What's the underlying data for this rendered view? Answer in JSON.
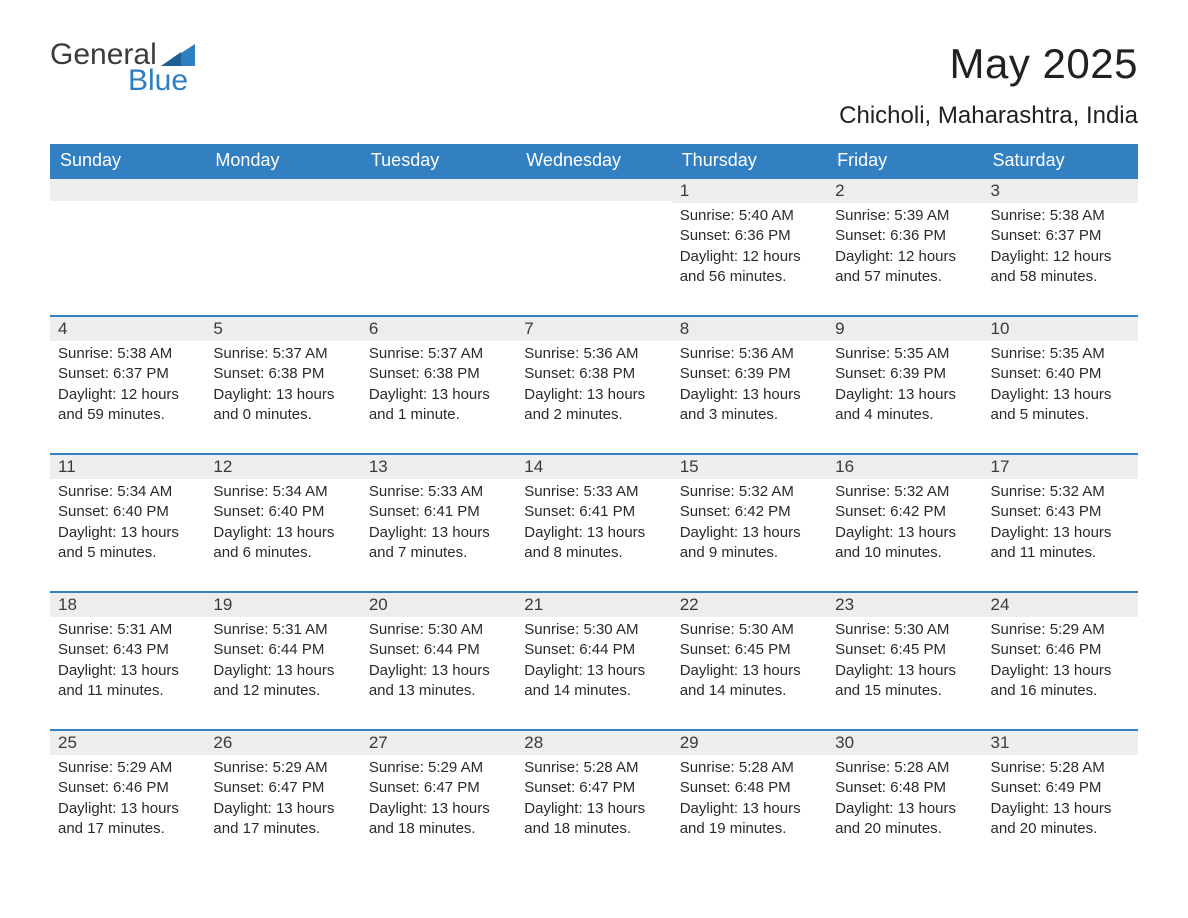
{
  "brand": {
    "part1": "General",
    "part2": "Blue"
  },
  "header": {
    "title": "May 2025",
    "location": "Chicholi, Maharashtra, India"
  },
  "colors": {
    "header_bg": "#327fc2",
    "header_text": "#ffffff",
    "daynum_bg": "#ededed",
    "border_top": "#327fc2",
    "body_text": "#2a2a2a",
    "page_bg": "#ffffff",
    "logo_accent": "#2f7ec2"
  },
  "weekdays": [
    "Sunday",
    "Monday",
    "Tuesday",
    "Wednesday",
    "Thursday",
    "Friday",
    "Saturday"
  ],
  "grid": [
    [
      {
        "blank": true
      },
      {
        "blank": true
      },
      {
        "blank": true
      },
      {
        "blank": true
      },
      {
        "n": "1",
        "sr": "5:40 AM",
        "ss": "6:36 PM",
        "dl": "12 hours and 56 minutes."
      },
      {
        "n": "2",
        "sr": "5:39 AM",
        "ss": "6:36 PM",
        "dl": "12 hours and 57 minutes."
      },
      {
        "n": "3",
        "sr": "5:38 AM",
        "ss": "6:37 PM",
        "dl": "12 hours and 58 minutes."
      }
    ],
    [
      {
        "n": "4",
        "sr": "5:38 AM",
        "ss": "6:37 PM",
        "dl": "12 hours and 59 minutes."
      },
      {
        "n": "5",
        "sr": "5:37 AM",
        "ss": "6:38 PM",
        "dl": "13 hours and 0 minutes."
      },
      {
        "n": "6",
        "sr": "5:37 AM",
        "ss": "6:38 PM",
        "dl": "13 hours and 1 minute."
      },
      {
        "n": "7",
        "sr": "5:36 AM",
        "ss": "6:38 PM",
        "dl": "13 hours and 2 minutes."
      },
      {
        "n": "8",
        "sr": "5:36 AM",
        "ss": "6:39 PM",
        "dl": "13 hours and 3 minutes."
      },
      {
        "n": "9",
        "sr": "5:35 AM",
        "ss": "6:39 PM",
        "dl": "13 hours and 4 minutes."
      },
      {
        "n": "10",
        "sr": "5:35 AM",
        "ss": "6:40 PM",
        "dl": "13 hours and 5 minutes."
      }
    ],
    [
      {
        "n": "11",
        "sr": "5:34 AM",
        "ss": "6:40 PM",
        "dl": "13 hours and 5 minutes."
      },
      {
        "n": "12",
        "sr": "5:34 AM",
        "ss": "6:40 PM",
        "dl": "13 hours and 6 minutes."
      },
      {
        "n": "13",
        "sr": "5:33 AM",
        "ss": "6:41 PM",
        "dl": "13 hours and 7 minutes."
      },
      {
        "n": "14",
        "sr": "5:33 AM",
        "ss": "6:41 PM",
        "dl": "13 hours and 8 minutes."
      },
      {
        "n": "15",
        "sr": "5:32 AM",
        "ss": "6:42 PM",
        "dl": "13 hours and 9 minutes."
      },
      {
        "n": "16",
        "sr": "5:32 AM",
        "ss": "6:42 PM",
        "dl": "13 hours and 10 minutes."
      },
      {
        "n": "17",
        "sr": "5:32 AM",
        "ss": "6:43 PM",
        "dl": "13 hours and 11 minutes."
      }
    ],
    [
      {
        "n": "18",
        "sr": "5:31 AM",
        "ss": "6:43 PM",
        "dl": "13 hours and 11 minutes."
      },
      {
        "n": "19",
        "sr": "5:31 AM",
        "ss": "6:44 PM",
        "dl": "13 hours and 12 minutes."
      },
      {
        "n": "20",
        "sr": "5:30 AM",
        "ss": "6:44 PM",
        "dl": "13 hours and 13 minutes."
      },
      {
        "n": "21",
        "sr": "5:30 AM",
        "ss": "6:44 PM",
        "dl": "13 hours and 14 minutes."
      },
      {
        "n": "22",
        "sr": "5:30 AM",
        "ss": "6:45 PM",
        "dl": "13 hours and 14 minutes."
      },
      {
        "n": "23",
        "sr": "5:30 AM",
        "ss": "6:45 PM",
        "dl": "13 hours and 15 minutes."
      },
      {
        "n": "24",
        "sr": "5:29 AM",
        "ss": "6:46 PM",
        "dl": "13 hours and 16 minutes."
      }
    ],
    [
      {
        "n": "25",
        "sr": "5:29 AM",
        "ss": "6:46 PM",
        "dl": "13 hours and 17 minutes."
      },
      {
        "n": "26",
        "sr": "5:29 AM",
        "ss": "6:47 PM",
        "dl": "13 hours and 17 minutes."
      },
      {
        "n": "27",
        "sr": "5:29 AM",
        "ss": "6:47 PM",
        "dl": "13 hours and 18 minutes."
      },
      {
        "n": "28",
        "sr": "5:28 AM",
        "ss": "6:47 PM",
        "dl": "13 hours and 18 minutes."
      },
      {
        "n": "29",
        "sr": "5:28 AM",
        "ss": "6:48 PM",
        "dl": "13 hours and 19 minutes."
      },
      {
        "n": "30",
        "sr": "5:28 AM",
        "ss": "6:48 PM",
        "dl": "13 hours and 20 minutes."
      },
      {
        "n": "31",
        "sr": "5:28 AM",
        "ss": "6:49 PM",
        "dl": "13 hours and 20 minutes."
      }
    ]
  ],
  "labels": {
    "sunrise": "Sunrise:",
    "sunset": "Sunset:",
    "daylight": "Daylight:"
  }
}
